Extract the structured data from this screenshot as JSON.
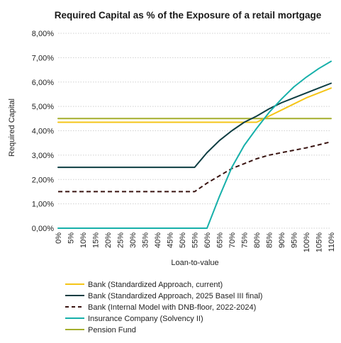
{
  "chart_data": {
    "type": "line",
    "title": "Required Capital as % of the Exposure of a retail mortgage",
    "xlabel": "Loan-to-value",
    "ylabel": "Required Capital",
    "ylim": [
      0,
      8
    ],
    "y_ticks": [
      "0,00%",
      "1,00%",
      "2,00%",
      "3,00%",
      "4,00%",
      "5,00%",
      "6,00%",
      "7,00%",
      "8,00%"
    ],
    "categories": [
      "0%",
      "5%",
      "10%",
      "15%",
      "20%",
      "25%",
      "30%",
      "35%",
      "40%",
      "45%",
      "50%",
      "55%",
      "60%",
      "65%",
      "70%",
      "75%",
      "80%",
      "85%",
      "90%",
      "95%",
      "100%",
      "105%",
      "110%"
    ],
    "x": [
      0,
      5,
      10,
      15,
      20,
      25,
      30,
      35,
      40,
      45,
      50,
      55,
      60,
      65,
      70,
      75,
      80,
      85,
      90,
      95,
      100,
      105,
      110
    ],
    "grid": "horizontal",
    "legend_position": "bottom",
    "series": [
      {
        "name": "Bank (Standardized Approach, current)",
        "color": "#f5c518",
        "dash": "solid",
        "values": [
          4.35,
          4.35,
          4.35,
          4.35,
          4.35,
          4.35,
          4.35,
          4.35,
          4.35,
          4.35,
          4.35,
          4.35,
          4.35,
          4.35,
          4.35,
          4.35,
          4.35,
          4.6,
          4.85,
          5.1,
          5.35,
          5.55,
          5.75
        ]
      },
      {
        "name": "Bank (Standardized Approach, 2025 Basel III final)",
        "color": "#0d3d42",
        "dash": "solid",
        "values": [
          2.5,
          2.5,
          2.5,
          2.5,
          2.5,
          2.5,
          2.5,
          2.5,
          2.5,
          2.5,
          2.5,
          2.5,
          3.1,
          3.6,
          4.0,
          4.35,
          4.6,
          4.9,
          5.15,
          5.35,
          5.55,
          5.75,
          5.95
        ]
      },
      {
        "name": "Bank (Internal Model with DNB-floor, 2022-2024)",
        "color": "#3a1512",
        "dash": "dashed",
        "values": [
          1.5,
          1.5,
          1.5,
          1.5,
          1.5,
          1.5,
          1.5,
          1.5,
          1.5,
          1.5,
          1.5,
          1.5,
          1.85,
          2.15,
          2.45,
          2.65,
          2.85,
          3.0,
          3.1,
          3.2,
          3.3,
          3.42,
          3.55
        ]
      },
      {
        "name": "Insurance Company (Solvency II)",
        "color": "#17b0aa",
        "dash": "solid",
        "values": [
          0,
          0,
          0,
          0,
          0,
          0,
          0,
          0,
          0,
          0,
          0,
          0,
          0,
          1.3,
          2.5,
          3.4,
          4.1,
          4.75,
          5.3,
          5.8,
          6.2,
          6.55,
          6.85
        ]
      },
      {
        "name": "Pension Fund",
        "color": "#a4ae2c",
        "dash": "solid",
        "values": [
          4.5,
          4.5,
          4.5,
          4.5,
          4.5,
          4.5,
          4.5,
          4.5,
          4.5,
          4.5,
          4.5,
          4.5,
          4.5,
          4.5,
          4.5,
          4.5,
          4.5,
          4.5,
          4.5,
          4.5,
          4.5,
          4.5,
          4.5
        ]
      }
    ]
  }
}
